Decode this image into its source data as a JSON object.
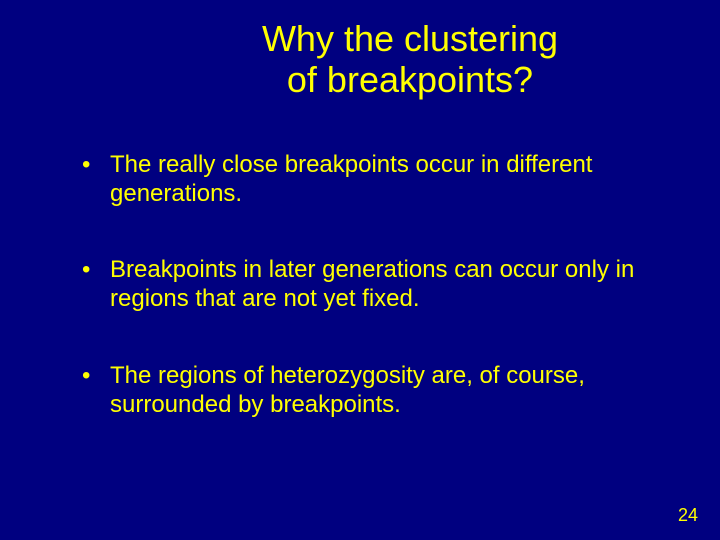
{
  "slide": {
    "background_color": "#000080",
    "text_color": "#ffff00",
    "title_fontsize": 36,
    "body_fontsize": 24,
    "pagenum_fontsize": 18,
    "title_line1": "Why the clustering",
    "title_line2": "of breakpoints?",
    "bullets": [
      "The really close breakpoints occur in different generations.",
      "Breakpoints in later generations can occur only in regions that are not yet fixed.",
      "The regions of heterozygosity are, of course, surrounded by breakpoints."
    ],
    "page_number": "24"
  }
}
